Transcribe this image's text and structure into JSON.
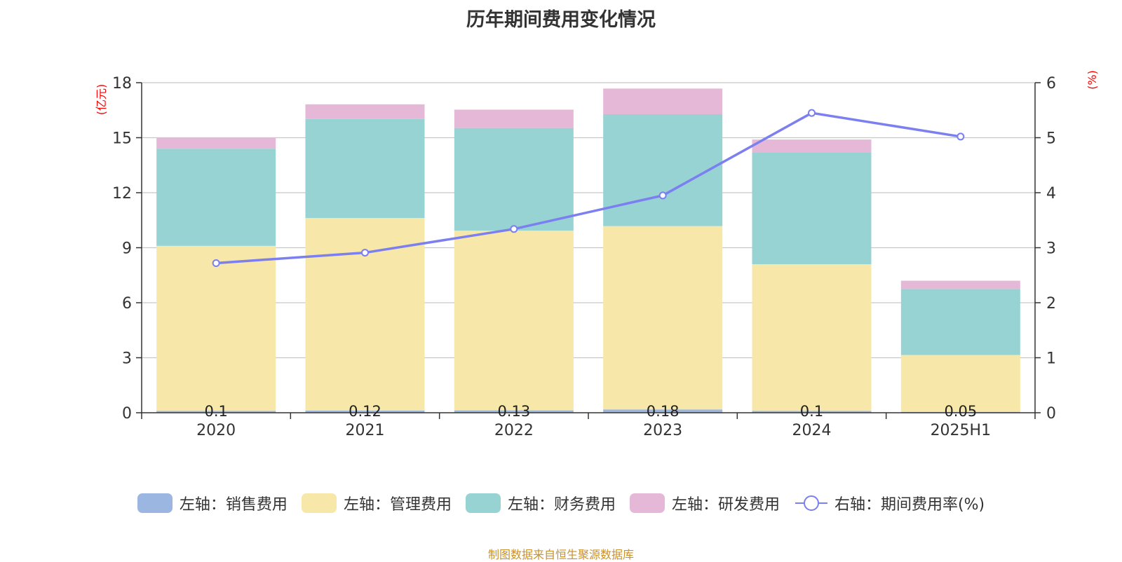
{
  "title": "历年期间费用变化情况",
  "source": "制图数据来自恒生聚源数据库",
  "colors": {
    "sales": "#9cb6e2",
    "management": "#f7e7a8",
    "finance": "#97d3d3",
    "rd": "#e6b8d8",
    "rate": "#7b7ff0",
    "axis_unit": "#ff0000",
    "grid": "#c8c8c8",
    "axis": "#333333"
  },
  "legend": [
    {
      "label": "左轴：销售费用",
      "color_key": "sales",
      "kind": "bar"
    },
    {
      "label": "左轴：管理费用",
      "color_key": "management",
      "kind": "bar"
    },
    {
      "label": "左轴：财务费用",
      "color_key": "finance",
      "kind": "bar"
    },
    {
      "label": "左轴：研发费用",
      "color_key": "rd",
      "kind": "bar"
    },
    {
      "label": "右轴：期间费用率(%)",
      "color_key": "rate",
      "kind": "line"
    }
  ],
  "chart_data": {
    "type": "bar",
    "stacked": true,
    "categories": [
      "2020",
      "2021",
      "2022",
      "2023",
      "2024",
      "2025H1"
    ],
    "y_left": {
      "label": "(亿元)",
      "ylim": [
        0,
        18
      ],
      "ticks": [
        "0",
        "3",
        "6",
        "9",
        "12",
        "15",
        "18"
      ]
    },
    "y_right": {
      "label": "(%)",
      "ylim": [
        0,
        6
      ],
      "ticks": [
        "0",
        "1",
        "2",
        "3",
        "4",
        "5",
        "6"
      ]
    },
    "grid": true,
    "legend_position": "bottom",
    "series": [
      {
        "name": "左轴：销售费用",
        "axis": "left",
        "type": "bar",
        "color_key": "sales",
        "values": [
          0.1,
          0.12,
          0.13,
          0.18,
          0.1,
          0.05
        ],
        "data_labels": [
          "0.1",
          "0.12",
          "0.13",
          "0.18",
          "0.1",
          "0.05"
        ]
      },
      {
        "name": "左轴：管理费用",
        "axis": "left",
        "type": "bar",
        "color_key": "management",
        "values": [
          9.0,
          10.5,
          9.8,
          10.0,
          8.0,
          3.1
        ]
      },
      {
        "name": "左轴：财务费用",
        "axis": "left",
        "type": "bar",
        "color_key": "finance",
        "values": [
          5.3,
          5.4,
          5.6,
          6.1,
          6.1,
          3.6
        ]
      },
      {
        "name": "左轴：研发费用",
        "axis": "left",
        "type": "bar",
        "color_key": "rd",
        "values": [
          0.6,
          0.8,
          1.0,
          1.4,
          0.7,
          0.45
        ]
      },
      {
        "name": "右轴：期间费用率(%)",
        "axis": "right",
        "type": "line",
        "color_key": "rate",
        "values": [
          2.72,
          2.91,
          3.34,
          3.95,
          5.45,
          5.02
        ]
      }
    ]
  }
}
